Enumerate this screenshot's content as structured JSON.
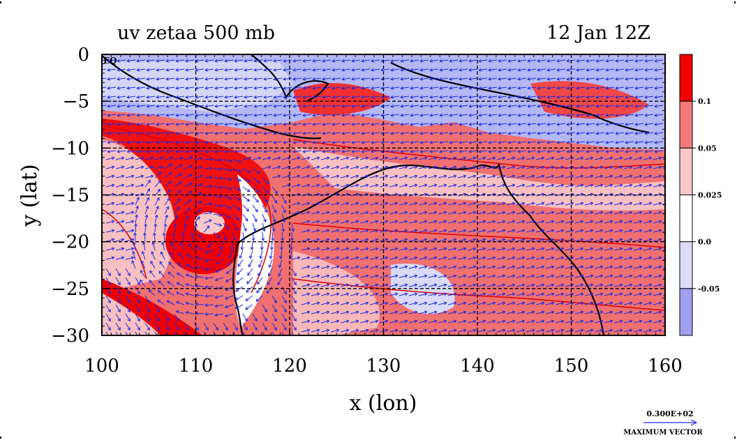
{
  "chart_data": {
    "type": "heatmap",
    "title_left": "uv zetaa 500 mb",
    "title_right": "12 Jan 12Z",
    "xlabel": "x (lon)",
    "ylabel": "y (lat)",
    "xlim": [
      100,
      160
    ],
    "ylim": [
      -30,
      0
    ],
    "xticks": [
      100,
      110,
      120,
      130,
      140,
      150,
      160
    ],
    "yticks": [
      0,
      -5,
      -10,
      -15,
      -20,
      -25,
      -30
    ],
    "ytick_labels": [
      "0",
      "−5",
      "−10",
      "−15",
      "−20",
      "−25",
      "−30"
    ],
    "equator_label": "EQ",
    "grid": true,
    "colorbar": {
      "levels": [
        0.1,
        0.05,
        0.025,
        0.0,
        -0.05
      ],
      "labels": [
        "0.1",
        "0.05",
        "0.025",
        "0.0",
        "-0.05"
      ],
      "colors": [
        "#f00000",
        "#f47a7a",
        "#f8c8c8",
        "#ffffff",
        "#dcdcf8",
        "#a0a0f0"
      ]
    },
    "vector_key": {
      "value": "0.300E+02",
      "label": "MAXIMUM VECTOR"
    },
    "colors": {
      "background": "#f06c6c",
      "strong_positive": "#f00000",
      "weak_positive": "#f8c0c0",
      "negative": "#b0b4f4",
      "contour": "#e00000",
      "vectors": "#1a2ae6",
      "coastline": "#000000"
    }
  }
}
